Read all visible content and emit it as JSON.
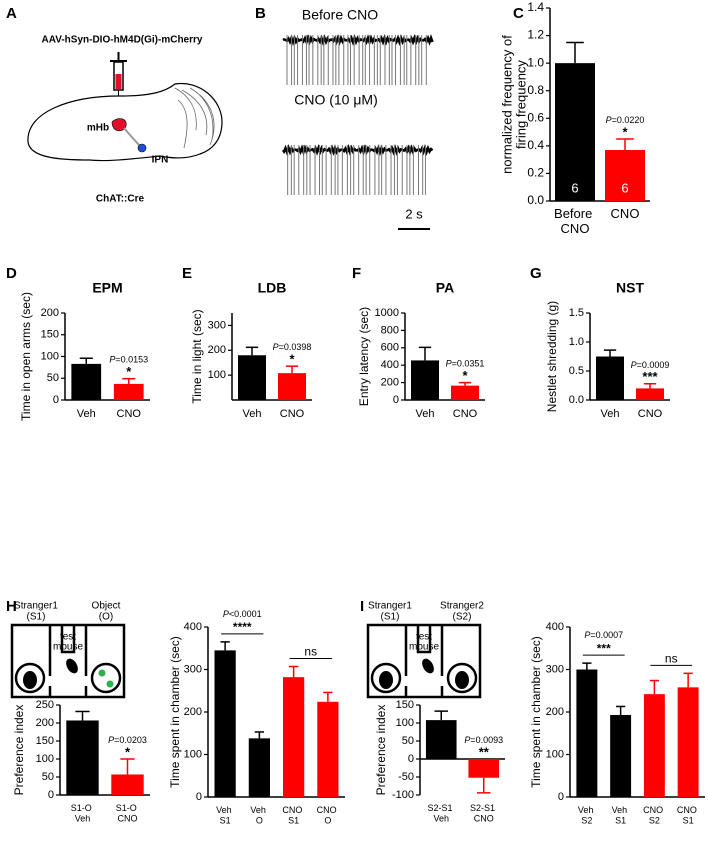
{
  "panel_labels": [
    "A",
    "B",
    "C",
    "D",
    "E",
    "F",
    "G",
    "H",
    "I"
  ],
  "diagram_a": {
    "vector": "AAV-hSyn-DIO-hM4D(Gi)-mCherry",
    "region1": "mHb",
    "region2": "IPN",
    "mouse_line": "ChAT::Cre"
  },
  "traces_b": {
    "label_before": "Before CNO",
    "label_cno": "CNO (10 μM)",
    "scale_bar": "2 s"
  },
  "diagram_h": {
    "left_top": "Stranger1",
    "left_bottom": "(S1)",
    "right_top": "Object",
    "right_bottom": "(O)",
    "center_top": "test",
    "center_bottom": "mouse"
  },
  "diagram_i": {
    "left_top": "Stranger1",
    "left_bottom": "(S1)",
    "right_top": "Stranger2",
    "right_bottom": "(S2)",
    "center_top": "test",
    "center_bottom": "mouse"
  },
  "chart_data": [
    {
      "type": "bar",
      "ylabel": [
        "normalized frequency of",
        "firing frequency"
      ],
      "categories": [
        "Before CNO",
        "CNO"
      ],
      "values": [
        1.0,
        0.37
      ],
      "errors": [
        0.15,
        0.08
      ],
      "colors": [
        "#000000",
        "#ff0000"
      ],
      "n_labels": [
        "6",
        "6"
      ],
      "p_labels": [
        null,
        "P=0.0220"
      ],
      "stars": [
        null,
        "*"
      ],
      "ylim": [
        0,
        1.4
      ],
      "yticks": [
        {
          "value": 0,
          "label": "0.0"
        },
        0.2,
        0.4,
        0.6,
        0.8,
        {
          "value": 1,
          "label": "1.0"
        },
        1.2,
        1.4
      ]
    },
    {
      "type": "bar",
      "title": "EPM",
      "ylabel": "Time in open arms (sec)",
      "categories": [
        "Veh",
        "CNO"
      ],
      "values": [
        83,
        37
      ],
      "errors": [
        13,
        12
      ],
      "colors": [
        "#000000",
        "#ff0000"
      ],
      "p_labels": [
        null,
        "P=0.0153"
      ],
      "stars": [
        null,
        "*"
      ],
      "ylim": [
        0,
        200
      ],
      "yticks": [
        0,
        50,
        100,
        150,
        200
      ]
    },
    {
      "type": "bar",
      "title": "LDB",
      "ylabel": "Time in light (sec)",
      "categories": [
        "Veh",
        "CNO"
      ],
      "values": [
        180,
        108
      ],
      "errors": [
        32,
        28
      ],
      "colors": [
        "#000000",
        "#ff0000"
      ],
      "p_labels": [
        null,
        "P=0.0398"
      ],
      "stars": [
        null,
        "*"
      ],
      "ylim": [
        0,
        350
      ],
      "yticks": [
        100,
        200,
        300
      ]
    },
    {
      "type": "bar",
      "title": "PA",
      "ylabel": "Entry latency (sec)",
      "categories": [
        "Veh",
        "CNO"
      ],
      "values": [
        455,
        165
      ],
      "errors": [
        150,
        35
      ],
      "colors": [
        "#000000",
        "#ff0000"
      ],
      "p_labels": [
        null,
        "P=0.0351"
      ],
      "stars": [
        null,
        "*"
      ],
      "ylim": [
        0,
        1000
      ],
      "yticks": [
        0,
        200,
        400,
        600,
        800,
        1000
      ]
    },
    {
      "type": "bar",
      "title": "NST",
      "ylabel": "Nestlet shredding (g)",
      "categories": [
        "Veh",
        "CNO"
      ],
      "values": [
        0.75,
        0.2
      ],
      "errors": [
        0.11,
        0.08
      ],
      "colors": [
        "#000000",
        "#ff0000"
      ],
      "p_labels": [
        null,
        "P=0.0009"
      ],
      "stars": [
        null,
        "***"
      ],
      "ylim": [
        0,
        1.5
      ],
      "yticks": [
        {
          "value": 0,
          "label": "0.0"
        },
        0.5,
        {
          "value": 1,
          "label": "1.0"
        },
        1.5
      ]
    },
    {
      "type": "bar",
      "ylabel": "Preference index",
      "categories": [
        "S1-O Veh",
        "S1-O CNO"
      ],
      "values": [
        207,
        57
      ],
      "errors": [
        25,
        43
      ],
      "colors": [
        "#000000",
        "#ff0000"
      ],
      "p_labels": [
        null,
        "P=0.0203"
      ],
      "stars": [
        null,
        "*"
      ],
      "ylim": [
        0,
        250
      ],
      "yticks": [
        0,
        50,
        100,
        150,
        200,
        250
      ]
    },
    {
      "type": "bar",
      "ylabel": "Time spent in chamber (sec)",
      "categories": [
        "Veh S1",
        "Veh O",
        "CNO S1",
        "CNO O"
      ],
      "values": [
        345,
        138,
        282,
        224
      ],
      "errors": [
        20,
        15,
        25,
        22
      ],
      "colors": [
        "#000000",
        "#000000",
        "#ff0000",
        "#ff0000"
      ],
      "comparisons": [
        {
          "p": "P<0.0001",
          "stars": "****"
        },
        {
          "stars": "ns"
        }
      ],
      "ylim": [
        0,
        400
      ],
      "yticks": [
        0,
        100,
        200,
        300,
        400
      ]
    },
    {
      "type": "bar",
      "ylabel": "Preference index",
      "categories": [
        "S2-S1 Veh",
        "S2-S1 CNO"
      ],
      "values": [
        108,
        -52
      ],
      "errors": [
        25,
        42
      ],
      "colors": [
        "#000000",
        "#ff0000"
      ],
      "p_labels": [
        null,
        "P=0.0093"
      ],
      "stars": [
        null,
        "**"
      ],
      "ylim": [
        -100,
        150
      ],
      "yticks": [
        -100,
        -50,
        0,
        50,
        100,
        150
      ]
    },
    {
      "type": "bar",
      "ylabel": "Time spent in chamber (sec)",
      "categories": [
        "Veh S2",
        "Veh S1",
        "CNO S2",
        "CNO S1"
      ],
      "values": [
        300,
        193,
        242,
        258
      ],
      "errors": [
        15,
        20,
        32,
        33
      ],
      "colors": [
        "#000000",
        "#000000",
        "#ff0000",
        "#ff0000"
      ],
      "comparisons": [
        {
          "p": "P=0.0007",
          "stars": "***"
        },
        {
          "stars": "ns"
        }
      ],
      "ylim": [
        0,
        400
      ],
      "yticks": [
        0,
        100,
        200,
        300,
        400
      ]
    }
  ]
}
